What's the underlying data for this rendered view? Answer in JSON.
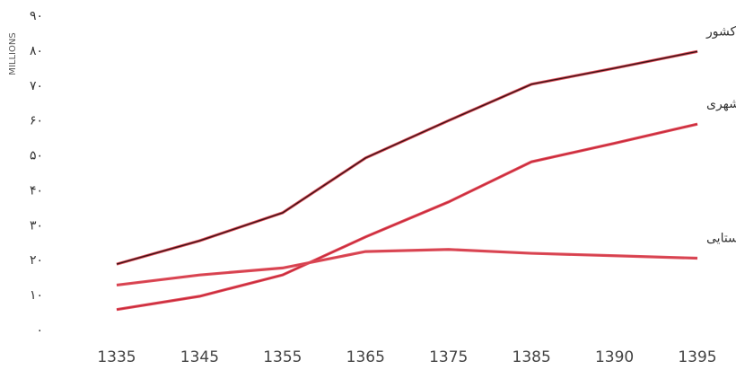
{
  "chart_data": {
    "type": "line",
    "y_label": "MILLIONS",
    "categories": [
      "1335",
      "1345",
      "1355",
      "1365",
      "1375",
      "1385",
      "1390",
      "1395"
    ],
    "series": [
      {
        "name": "جمعیت کل کشور",
        "color": "#3a1214",
        "values": [
          19,
          25.7,
          33.7,
          49.4,
          60.1,
          70.5,
          75.1,
          79.9
        ]
      },
      {
        "name": "جمعیت نقاط شهری",
        "color": "#c8283a",
        "values": [
          6,
          9.8,
          15.9,
          26.8,
          36.8,
          48.3,
          53.6,
          59.1
        ]
      },
      {
        "name": "جمعیت نقاط روستایی",
        "color": "#d4404e",
        "values": [
          13,
          15.9,
          17.9,
          22.6,
          23.2,
          22.1,
          21.4,
          20.7
        ]
      }
    ],
    "ylim": [
      0,
      90
    ],
    "yticks": [
      {
        "value": 0,
        "label": "۰"
      },
      {
        "value": 10,
        "label": "۱۰"
      },
      {
        "value": 20,
        "label": "۲۰"
      },
      {
        "value": 30,
        "label": "۳۰"
      },
      {
        "value": 40,
        "label": "۴۰"
      },
      {
        "value": 50,
        "label": "۵۰"
      },
      {
        "value": 60,
        "label": "۶۰"
      },
      {
        "value": 70,
        "label": "۷۰"
      },
      {
        "value": 80,
        "label": "۸۰"
      },
      {
        "value": 90,
        "label": "۹۰"
      }
    ],
    "grid": false
  }
}
